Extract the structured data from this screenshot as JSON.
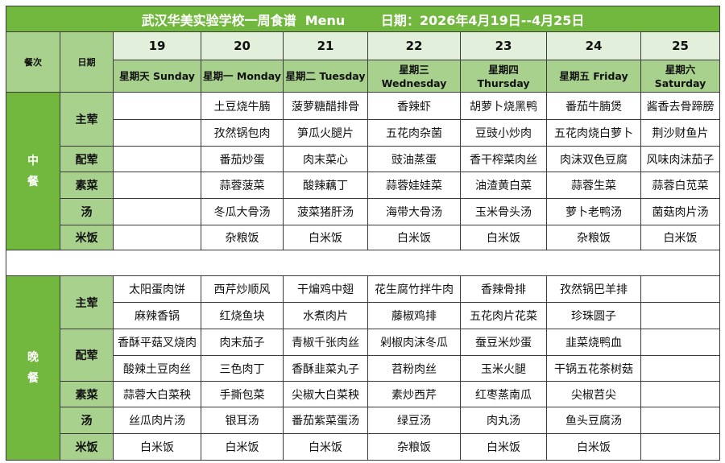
{
  "title": "武汉华美实验学校一周食谱  Menu        日期：2026年4月19日--4月25日",
  "header": {
    "meal_label": "餐次",
    "date_label": "日期",
    "days": [
      {
        "date": "19",
        "weekday": "星期天 Sunday"
      },
      {
        "date": "20",
        "weekday": "星期一 Monday"
      },
      {
        "date": "21",
        "weekday": "星期二 Tuesday"
      },
      {
        "date": "22",
        "weekday": "星期三 Wednesday"
      },
      {
        "date": "23",
        "weekday": "星期四 Thursday"
      },
      {
        "date": "24",
        "weekday": "星期五 Friday"
      },
      {
        "date": "25",
        "weekday": "星期六 Saturday"
      }
    ]
  },
  "colors": {
    "title_bg": "#72b83f",
    "header_bg": "#a9d18e",
    "date_bg": "#e2efda"
  },
  "meals": [
    {
      "name": "中餐",
      "rows": [
        {
          "category": "主荤",
          "dishes": [
            "",
            "土豆烧牛腩",
            "菠萝糖醋排骨",
            "香辣虾",
            "胡萝卜烧黑鸭",
            "番茄牛腩煲",
            "酱香去骨蹄膀"
          ]
        },
        {
          "category": "主荤",
          "dishes": [
            "",
            "孜然锅包肉",
            "笋瓜火腿片",
            "五花肉杂菌",
            "豆豉小炒肉",
            "五花肉烧白萝卜",
            "荆沙财鱼片"
          ]
        },
        {
          "category": "配荤",
          "dishes": [
            "",
            "番茄炒蛋",
            "肉末菜心",
            "豉油蒸蛋",
            "香干榨菜肉丝",
            "肉沫双色豆腐",
            "风味肉沫茄子"
          ]
        },
        {
          "category": "素菜",
          "dishes": [
            "",
            "蒜蓉菠菜",
            "酸辣藕丁",
            "蒜蓉娃娃菜",
            "油渣黄白菜",
            "蒜蓉生菜",
            "蒜蓉白苋菜"
          ]
        },
        {
          "category": "汤",
          "dishes": [
            "",
            "冬瓜大骨汤",
            "菠菜猪肝汤",
            "海带大骨汤",
            "玉米骨头汤",
            "萝卜老鸭汤",
            "菌菇肉片汤"
          ]
        },
        {
          "category": "米饭",
          "dishes": [
            "",
            "杂粮饭",
            "白米饭",
            "白米饭",
            "白米饭",
            "杂粮饭",
            "白米饭"
          ]
        }
      ]
    },
    {
      "name": "晚餐",
      "rows": [
        {
          "category": "主荤",
          "dishes": [
            "太阳蛋肉饼",
            "西芹炒顺风",
            "干煸鸡中翅",
            "花生腐竹拌牛肉",
            "香辣骨排",
            "孜然锅巴羊排",
            ""
          ]
        },
        {
          "category": "主荤",
          "dishes": [
            "麻辣香锅",
            "红烧鱼块",
            "水煮肉片",
            "藤椒鸡排",
            "五花肉片花菜",
            "珍珠圆子",
            ""
          ]
        },
        {
          "category": "配荤",
          "dishes": [
            "香酥平菇叉烧肉",
            "肉末茄子",
            "青椒千张肉丝",
            "剁椒肉沫冬瓜",
            "蚕豆米炒蛋",
            "韭菜烧鸭血",
            ""
          ]
        },
        {
          "category": "配荤",
          "dishes": [
            "酸辣土豆肉丝",
            "三色肉丁",
            "香酥韭菜丸子",
            "苕粉肉丝",
            "玉米火腿",
            "干锅五花茶树菇",
            ""
          ]
        },
        {
          "category": "素菜",
          "dishes": [
            "蒜蓉大白菜秧",
            "手撕包菜",
            "尖椒大白菜秧",
            "素炒西芹",
            "红枣蒸南瓜",
            "尖椒苕尖",
            ""
          ]
        },
        {
          "category": "汤",
          "dishes": [
            "丝瓜肉片汤",
            "银耳汤",
            "番茄紫菜蛋汤",
            "绿豆汤",
            "肉丸汤",
            "鱼头豆腐汤",
            ""
          ]
        },
        {
          "category": "米饭",
          "dishes": [
            "白米饭",
            "白米饭",
            "白米饭",
            "杂粮饭",
            "白米饭",
            "白米饭",
            ""
          ]
        }
      ]
    }
  ]
}
